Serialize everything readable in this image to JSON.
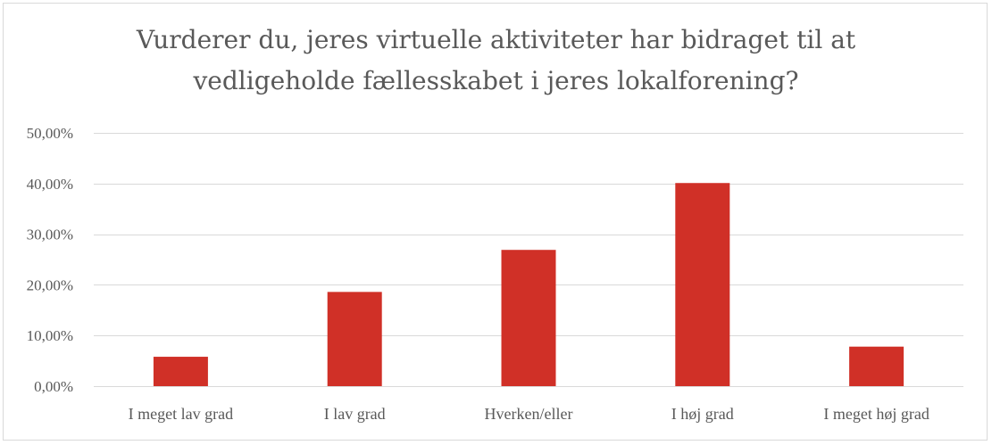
{
  "chart_data": {
    "type": "bar",
    "title": "Vurderer du, jeres virtuelle aktiviteter har bidraget til at vedligeholde fællesskabet i jeres lokalforening?",
    "title_lines": [
      "Vurderer du, jeres virtuelle aktiviteter har bidraget til at",
      "vedligeholde fællesskabet i jeres lokalforening?"
    ],
    "categories": [
      "I meget lav grad",
      "I lav grad",
      "Hverken/eller",
      "I høj grad",
      "I meget høj grad"
    ],
    "values": [
      0.058,
      0.186,
      0.269,
      0.401,
      0.078
    ],
    "ylim": [
      0,
      0.5
    ],
    "yticks": [
      0,
      0.1,
      0.2,
      0.3,
      0.4,
      0.5
    ],
    "ytick_labels": [
      "0,00%",
      "10,00%",
      "20,00%",
      "30,00%",
      "40,00%",
      "50,00%"
    ],
    "xlabel": "",
    "ylabel": "",
    "grid": true,
    "legend": "none",
    "bar_color": "#d03027",
    "gridline_color": "#d9d9d9"
  }
}
